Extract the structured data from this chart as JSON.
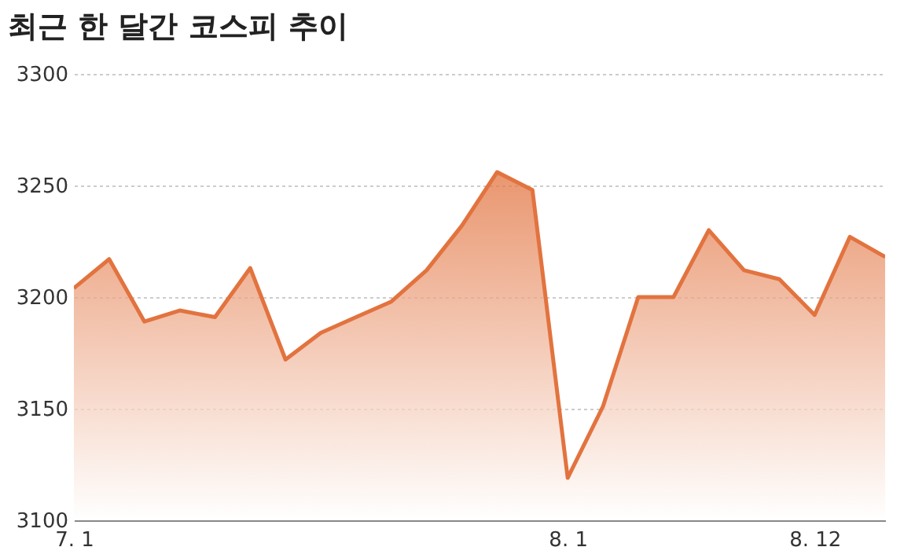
{
  "chart_data": {
    "type": "area",
    "title": "최근 한 달간 코스피 추이",
    "categories": [
      "7. 1",
      null,
      null,
      null,
      null,
      null,
      null,
      null,
      null,
      null,
      null,
      null,
      null,
      null,
      "8. 1",
      null,
      null,
      null,
      null,
      null,
      null,
      "8. 12",
      null,
      null
    ],
    "series": [
      {
        "color": "#e2733f",
        "values": [
          3204,
          3217,
          3189,
          3194,
          3191,
          3213,
          3172,
          3184,
          3191,
          3198,
          3212,
          3232,
          3256,
          3248,
          3119,
          3151,
          3200,
          3200,
          3230,
          3212,
          3208,
          3192,
          3227,
          3218
        ]
      }
    ],
    "ylim": [
      3100,
      3300
    ],
    "yticks": [
      3100,
      3150,
      3200,
      3250,
      3300
    ],
    "grid": "y",
    "marker": "none",
    "line_style": "solid"
  }
}
